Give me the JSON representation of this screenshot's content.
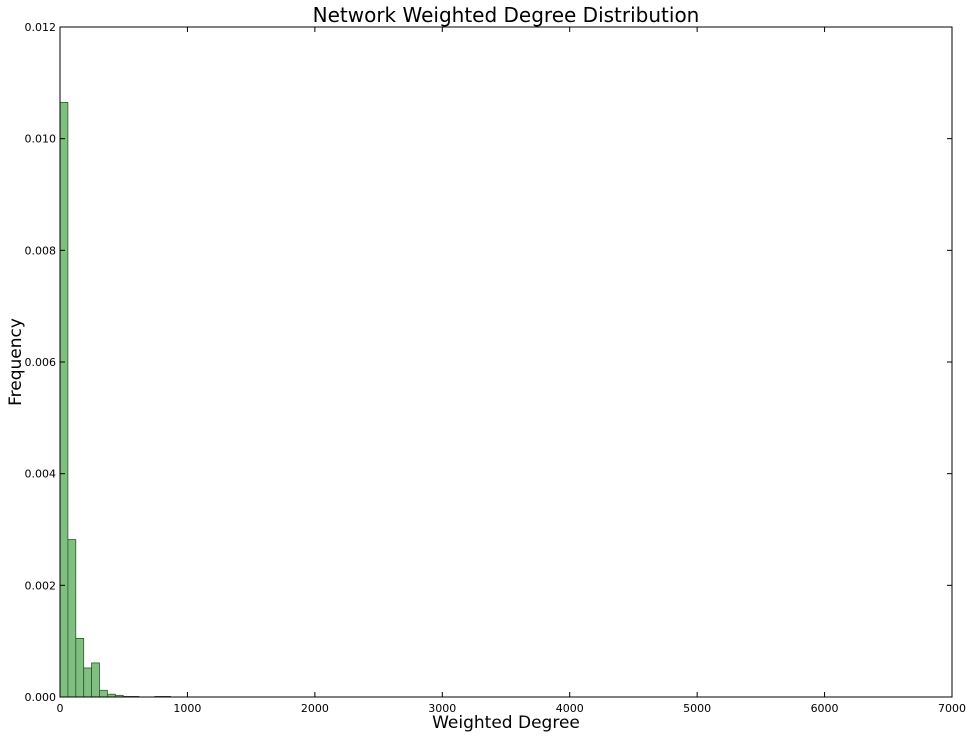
{
  "chart_data": {
    "type": "bar",
    "title": "Network Weighted Degree Distribution",
    "xlabel": "Weighted Degree",
    "ylabel": "Frequency",
    "xlim": [
      0,
      7000
    ],
    "ylim": [
      0,
      0.012
    ],
    "x_ticks": [
      "0",
      "1000",
      "2000",
      "3000",
      "4000",
      "5000",
      "6000",
      "7000"
    ],
    "x_tick_values": [
      0,
      1000,
      2000,
      3000,
      4000,
      5000,
      6000,
      7000
    ],
    "y_ticks": [
      "0.000",
      "0.002",
      "0.004",
      "0.006",
      "0.008",
      "0.010",
      "0.012"
    ],
    "y_tick_values": [
      0,
      0.002,
      0.004,
      0.006,
      0.008,
      0.01,
      0.012
    ],
    "bin_width": 62,
    "bins": [
      {
        "x0": 0,
        "value": 0.01065
      },
      {
        "x0": 62,
        "value": 0.00282
      },
      {
        "x0": 124,
        "value": 0.00105
      },
      {
        "x0": 186,
        "value": 0.00052
      },
      {
        "x0": 248,
        "value": 0.00061
      },
      {
        "x0": 310,
        "value": 0.00012
      },
      {
        "x0": 372,
        "value": 5e-05
      },
      {
        "x0": 434,
        "value": 3e-05
      },
      {
        "x0": 496,
        "value": 1e-05
      },
      {
        "x0": 558,
        "value": 1e-05
      },
      {
        "x0": 744,
        "value": 1e-05
      },
      {
        "x0": 806,
        "value": 1e-05
      }
    ],
    "bar_color": "#7fbf7f",
    "bar_edge_color": "#2d5a2d",
    "grid": false
  }
}
